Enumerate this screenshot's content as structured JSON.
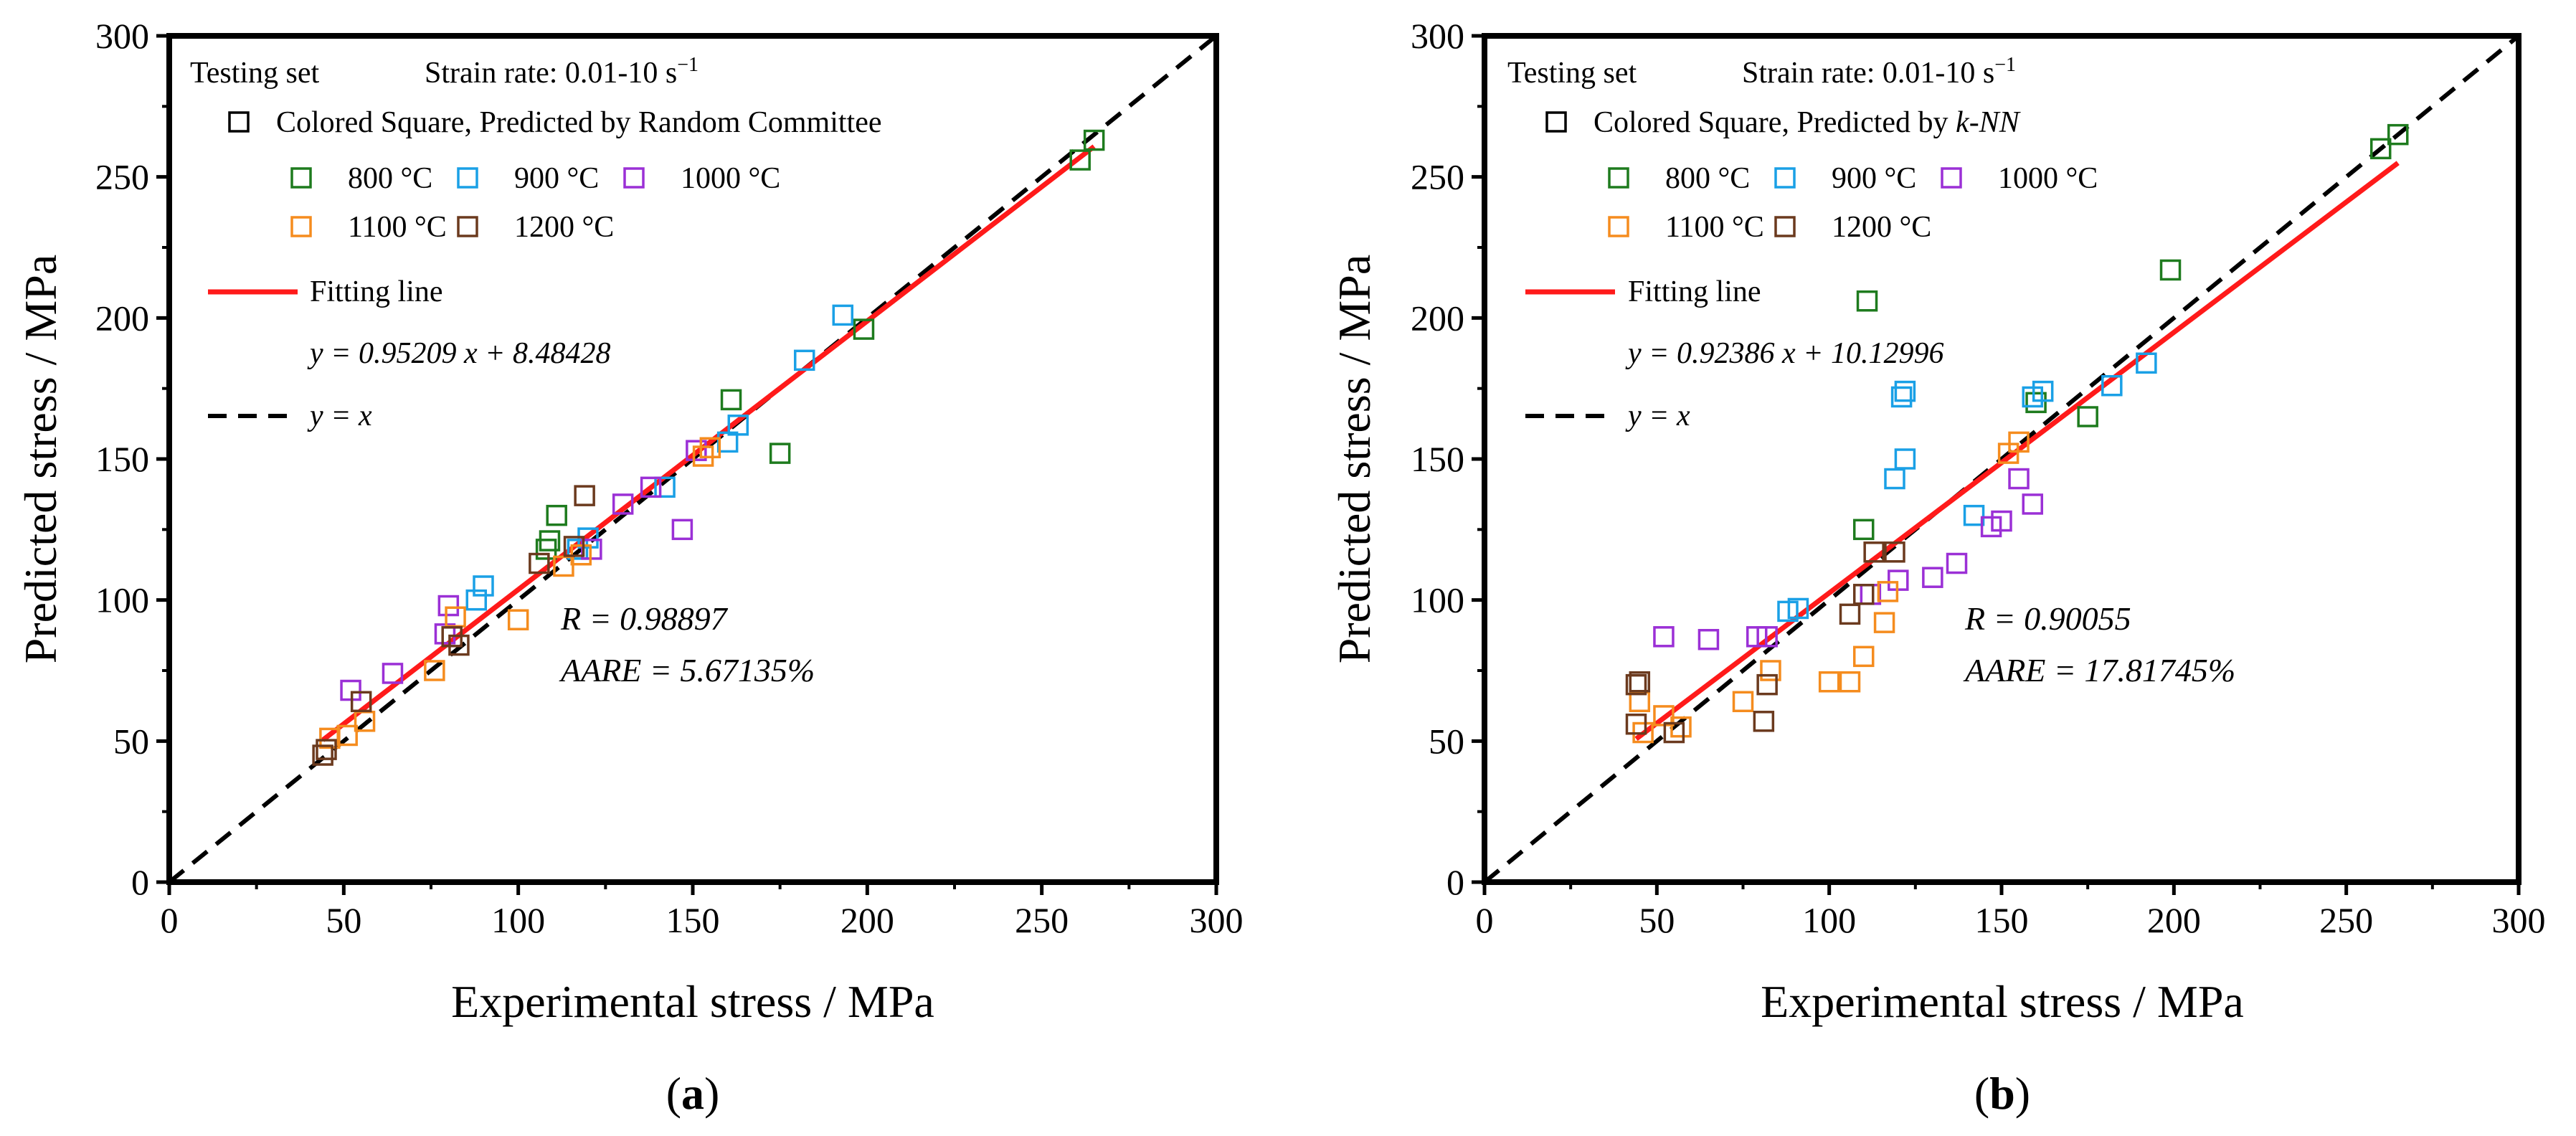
{
  "colors": {
    "800": "#1e7b1e",
    "900": "#1aa0e6",
    "1000": "#9b30d6",
    "1100": "#f58c1e",
    "1200": "#6b3a1e",
    "fit": "#ff1a1a",
    "yx": "#000000"
  },
  "chart_data": [
    {
      "type": "scatter",
      "panel_label": "(a)",
      "panel_letter": "a",
      "xlabel": "Experimental stress / MPa",
      "ylabel": "Predicted stress / MPa",
      "xlim": [
        0,
        300
      ],
      "ylim": [
        0,
        300
      ],
      "xticks": [
        "0",
        "50",
        "100",
        "150",
        "200",
        "250",
        "300"
      ],
      "yticks": [
        "0",
        "50",
        "100",
        "150",
        "200",
        "250",
        "300"
      ],
      "legend": {
        "set_label": "Testing set",
        "strain_label": "Strain rate: 0.01-10 s",
        "strain_exp": "−1",
        "model_label_prefix": "Colored Square, Predicted by ",
        "model_label_name": "Random Committee",
        "model_italic": false,
        "temps": [
          "800 °C",
          "900 °C",
          "1000 °C",
          "1100 °C",
          "1200 °C"
        ],
        "fit_label": "Fitting line",
        "fit_eq": "y = 0.95209 x + 8.48428",
        "yx_label": "y = x"
      },
      "R_text": "R = 0.98897",
      "AARE_text": "AARE = 5.67135%",
      "fit": {
        "slope": 0.95209,
        "intercept": 8.48428,
        "x0": 44,
        "x1": 265
      },
      "series": [
        {
          "name": "800 °C",
          "points": [
            [
              265,
              263
            ],
            [
              261,
              256
            ],
            [
              199,
              196
            ],
            [
              161,
              171
            ],
            [
              175,
              152
            ],
            [
              111,
              130
            ],
            [
              109,
              121
            ],
            [
              108,
              118
            ]
          ]
        },
        {
          "name": "900 °C",
          "points": [
            [
              193,
              201
            ],
            [
              182,
              185
            ],
            [
              163,
              162
            ],
            [
              160,
              156
            ],
            [
              142,
              140
            ],
            [
              120,
              122
            ],
            [
              117,
              118
            ],
            [
              90,
              105
            ],
            [
              88,
              100
            ]
          ]
        },
        {
          "name": "1000 °C",
          "points": [
            [
              147,
              125
            ],
            [
              151,
              153
            ],
            [
              138,
              140
            ],
            [
              130,
              134
            ],
            [
              121,
              118
            ],
            [
              80,
              98
            ],
            [
              79,
              88
            ],
            [
              64,
              74
            ],
            [
              52,
              68
            ]
          ]
        },
        {
          "name": "1100 °C",
          "points": [
            [
              153,
              151
            ],
            [
              155,
              154
            ],
            [
              118,
              116
            ],
            [
              113,
              112
            ],
            [
              100,
              93
            ],
            [
              82,
              94
            ],
            [
              76,
              75
            ],
            [
              56,
              57
            ],
            [
              51,
              52
            ],
            [
              46,
              51
            ]
          ]
        },
        {
          "name": "1200 °C",
          "points": [
            [
              119,
              137
            ],
            [
              116,
              119
            ],
            [
              106,
              113
            ],
            [
              81,
              87
            ],
            [
              83,
              84
            ],
            [
              55,
              64
            ],
            [
              45,
              47
            ],
            [
              44,
              45
            ]
          ]
        }
      ]
    },
    {
      "type": "scatter",
      "panel_label": "(b)",
      "panel_letter": "b",
      "xlabel": "Experimental stress / MPa",
      "ylabel": "Predicted stress / MPa",
      "xlim": [
        0,
        300
      ],
      "ylim": [
        0,
        300
      ],
      "xticks": [
        "0",
        "50",
        "100",
        "150",
        "200",
        "250",
        "300"
      ],
      "yticks": [
        "0",
        "50",
        "100",
        "150",
        "200",
        "250",
        "300"
      ],
      "legend": {
        "set_label": "Testing set",
        "strain_label": "Strain rate: 0.01-10 s",
        "strain_exp": "−1",
        "model_label_prefix": "Colored Square, Predicted by ",
        "model_label_name": "k-NN",
        "model_italic": true,
        "temps": [
          "800 °C",
          "900 °C",
          "1000 °C",
          "1100 °C",
          "1200 °C"
        ],
        "fit_label": "Fitting line",
        "fit_eq": "y = 0.92386 x + 10.12996",
        "yx_label": "y = x"
      },
      "R_text": "R = 0.90055",
      "AARE_text": "AARE = 17.81745%",
      "fit": {
        "slope": 0.92386,
        "intercept": 10.12996,
        "x0": 44,
        "x1": 265
      },
      "series": [
        {
          "name": "800 °C",
          "points": [
            [
              265,
              265
            ],
            [
              260,
              260
            ],
            [
              199,
              217
            ],
            [
              175,
              165
            ],
            [
              160,
              170
            ],
            [
              111,
              206
            ],
            [
              110,
              125
            ]
          ]
        },
        {
          "name": "900 °C",
          "points": [
            [
              192,
              184
            ],
            [
              182,
              176
            ],
            [
              162,
              174
            ],
            [
              159,
              172
            ],
            [
              142,
              130
            ],
            [
              122,
              174
            ],
            [
              121,
              172
            ],
            [
              122,
              150
            ],
            [
              119,
              143
            ],
            [
              91,
              97
            ],
            [
              88,
              96
            ]
          ]
        },
        {
          "name": "1000 °C",
          "points": [
            [
              159,
              134
            ],
            [
              155,
              143
            ],
            [
              150,
              128
            ],
            [
              147,
              126
            ],
            [
              137,
              113
            ],
            [
              130,
              108
            ],
            [
              120,
              107
            ],
            [
              112,
              102
            ],
            [
              82,
              87
            ],
            [
              79,
              87
            ],
            [
              65,
              86
            ],
            [
              52,
              87
            ]
          ]
        },
        {
          "name": "1100 °C",
          "points": [
            [
              155,
              156
            ],
            [
              152,
              152
            ],
            [
              117,
              103
            ],
            [
              116,
              92
            ],
            [
              110,
              80
            ],
            [
              106,
              71
            ],
            [
              100,
              71
            ],
            [
              83,
              75
            ],
            [
              75,
              64
            ],
            [
              57,
              55
            ],
            [
              52,
              59
            ],
            [
              46,
              53
            ],
            [
              45,
              64
            ]
          ]
        },
        {
          "name": "1200 °C",
          "points": [
            [
              119,
              117
            ],
            [
              113,
              117
            ],
            [
              110,
              102
            ],
            [
              106,
              95
            ],
            [
              82,
              70
            ],
            [
              81,
              57
            ],
            [
              55,
              53
            ],
            [
              45,
              71
            ],
            [
              44,
              70
            ],
            [
              44,
              56
            ]
          ]
        }
      ]
    }
  ]
}
